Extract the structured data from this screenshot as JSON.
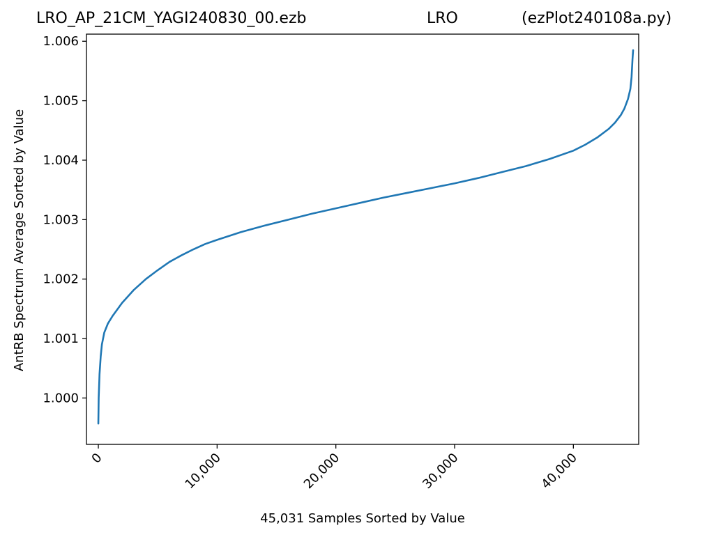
{
  "title": {
    "left": "LRO_AP_21CM_YAGI240830_00.ezb",
    "center": "LRO",
    "right": "(ezPlot240108a.py)"
  },
  "chart_data": {
    "type": "line",
    "xlabel": "45,031 Samples Sorted by Value",
    "ylabel": "AntRB Spectrum Average Sorted by Value",
    "xlim": [
      -1000,
      45500
    ],
    "ylim": [
      0.99922,
      1.00612
    ],
    "grid": false,
    "xticks": [
      0,
      10000,
      20000,
      30000,
      40000
    ],
    "xtick_labels": [
      "0",
      "10,000",
      "20,000",
      "30,000",
      "40,000"
    ],
    "yticks": [
      1.0,
      1.001,
      1.002,
      1.003,
      1.004,
      1.005,
      1.006
    ],
    "ytick_labels": [
      "1.000",
      "1.001",
      "1.002",
      "1.003",
      "1.004",
      "1.005",
      "1.006"
    ],
    "line_color": "#1f77b4",
    "series": [
      {
        "x": [
          0,
          30,
          100,
          200,
          300,
          500,
          800,
          1200,
          2000,
          3000,
          4000,
          5000,
          6000,
          7000,
          8000,
          9000,
          10000,
          12000,
          14000,
          16000,
          18000,
          20000,
          22000,
          24000,
          26000,
          28000,
          30000,
          32000,
          34000,
          36000,
          38000,
          40000,
          41000,
          42000,
          43000,
          43500,
          44000,
          44300,
          44600,
          44800,
          44900,
          44980,
          45031
        ],
        "y": [
          0.99957,
          1.0,
          1.0004,
          1.0007,
          1.0009,
          1.0011,
          1.00125,
          1.00138,
          1.0016,
          1.00182,
          1.002,
          1.00215,
          1.00229,
          1.0024,
          1.0025,
          1.00259,
          1.00266,
          1.00279,
          1.0029,
          1.003,
          1.0031,
          1.00319,
          1.00328,
          1.00337,
          1.00345,
          1.00353,
          1.00361,
          1.0037,
          1.0038,
          1.0039,
          1.00402,
          1.00416,
          1.00426,
          1.00438,
          1.00453,
          1.00463,
          1.00476,
          1.00487,
          1.00503,
          1.0052,
          1.0054,
          1.0057,
          1.00585
        ]
      }
    ]
  }
}
